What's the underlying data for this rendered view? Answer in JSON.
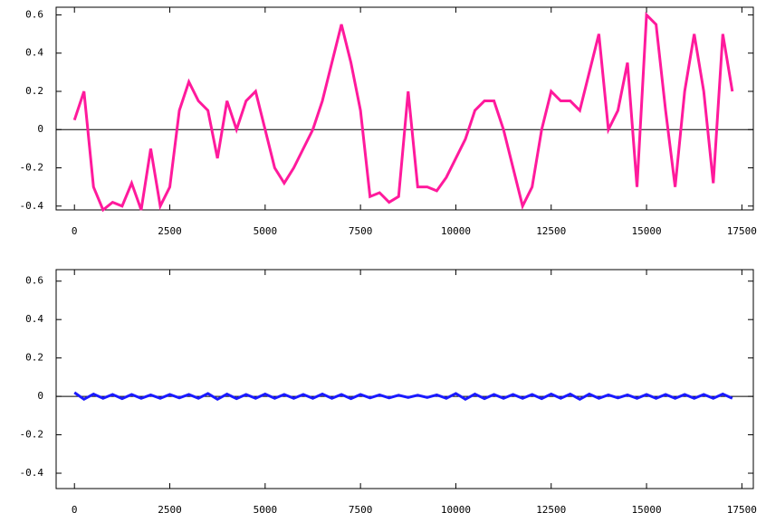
{
  "chart_data": [
    {
      "type": "line",
      "x": [
        0,
        250,
        500,
        750,
        1000,
        1250,
        1500,
        1750,
        2000,
        2250,
        2500,
        2750,
        3000,
        3250,
        3500,
        3750,
        4000,
        4250,
        4500,
        4750,
        5000,
        5250,
        5500,
        5750,
        6000,
        6250,
        6500,
        6750,
        7000,
        7250,
        7500,
        7750,
        8000,
        8250,
        8500,
        8750,
        9000,
        9250,
        9500,
        9750,
        10000,
        10250,
        10500,
        10750,
        11000,
        11250,
        11500,
        11750,
        12000,
        12250,
        12500,
        12750,
        13000,
        13250,
        13500,
        13750,
        14000,
        14250,
        14500,
        14750,
        15000,
        15250,
        15500,
        15750,
        16000,
        16250,
        16500,
        16750,
        17000,
        17250
      ],
      "values": [
        0.05,
        0.2,
        -0.3,
        -0.42,
        -0.38,
        -0.4,
        -0.28,
        -0.42,
        -0.1,
        -0.4,
        -0.3,
        0.1,
        0.25,
        0.15,
        0.1,
        -0.15,
        0.15,
        0.0,
        0.15,
        0.2,
        0.0,
        -0.2,
        -0.28,
        -0.2,
        -0.1,
        0.0,
        0.15,
        0.35,
        0.55,
        0.35,
        0.1,
        -0.35,
        -0.33,
        -0.38,
        -0.35,
        0.2,
        -0.3,
        -0.3,
        -0.32,
        -0.25,
        -0.15,
        -0.05,
        0.1,
        0.15,
        0.15,
        0.0,
        -0.2,
        -0.4,
        -0.3,
        0.0,
        0.2,
        0.15,
        0.15,
        0.1,
        0.3,
        0.5,
        0.0,
        0.1,
        0.35,
        -0.3,
        0.6,
        0.55,
        0.1,
        -0.3,
        0.2,
        0.5,
        0.2,
        -0.28,
        0.5,
        0.2
      ],
      "color": "#ff1a9c",
      "xlim": [
        -480,
        17800
      ],
      "ylim": [
        -0.42,
        0.64
      ],
      "xticks": [
        0,
        2500,
        5000,
        7500,
        10000,
        12500,
        15000,
        17500
      ],
      "yticks": [
        0.6,
        0.4,
        0.2,
        0,
        -0.2,
        -0.4
      ]
    },
    {
      "type": "line",
      "x": [
        0,
        250,
        500,
        750,
        1000,
        1250,
        1500,
        1750,
        2000,
        2250,
        2500,
        2750,
        3000,
        3250,
        3500,
        3750,
        4000,
        4250,
        4500,
        4750,
        5000,
        5250,
        5500,
        5750,
        6000,
        6250,
        6500,
        6750,
        7000,
        7250,
        7500,
        7750,
        8000,
        8250,
        8500,
        8750,
        9000,
        9250,
        9500,
        9750,
        10000,
        10250,
        10500,
        10750,
        11000,
        11250,
        11500,
        11750,
        12000,
        12250,
        12500,
        12750,
        13000,
        13250,
        13500,
        13750,
        14000,
        14250,
        14500,
        14750,
        15000,
        15250,
        15500,
        15750,
        16000,
        16250,
        16500,
        16750,
        17000,
        17250
      ],
      "values": [
        0.02,
        -0.015,
        0.012,
        -0.01,
        0.01,
        -0.012,
        0.01,
        -0.01,
        0.008,
        -0.01,
        0.01,
        -0.008,
        0.01,
        -0.01,
        0.015,
        -0.015,
        0.012,
        -0.012,
        0.01,
        -0.01,
        0.012,
        -0.01,
        0.01,
        -0.01,
        0.01,
        -0.01,
        0.012,
        -0.01,
        0.01,
        -0.012,
        0.01,
        -0.008,
        0.008,
        -0.008,
        0.006,
        -0.006,
        0.006,
        -0.006,
        0.008,
        -0.01,
        0.015,
        -0.015,
        0.012,
        -0.012,
        0.01,
        -0.01,
        0.01,
        -0.01,
        0.01,
        -0.012,
        0.012,
        -0.01,
        0.012,
        -0.015,
        0.012,
        -0.01,
        0.008,
        -0.008,
        0.008,
        -0.01,
        0.01,
        -0.01,
        0.01,
        -0.01,
        0.01,
        -0.01,
        0.01,
        -0.01,
        0.012,
        -0.01
      ],
      "color": "#1a1aff",
      "xlim": [
        -480,
        17800
      ],
      "ylim": [
        -0.48,
        0.66
      ],
      "xticks": [
        0,
        2500,
        5000,
        7500,
        10000,
        12500,
        15000,
        17500
      ],
      "yticks": [
        0.6,
        0.4,
        0.2,
        0,
        -0.2,
        -0.4
      ]
    }
  ]
}
